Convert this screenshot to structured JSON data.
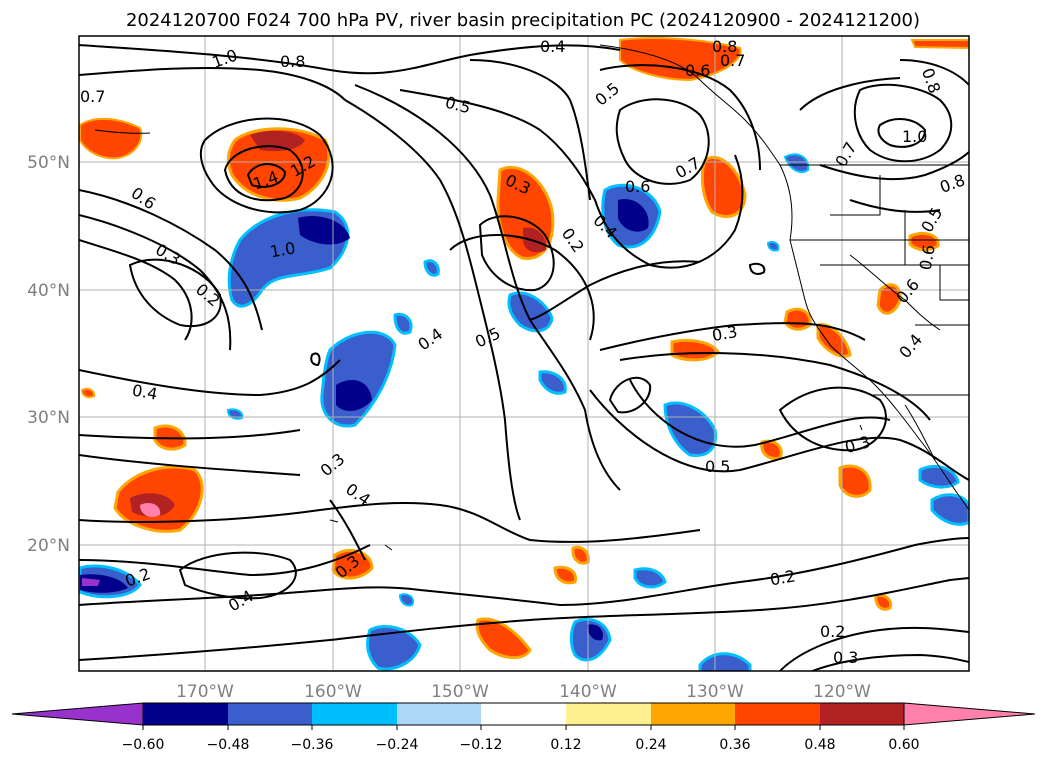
{
  "title": "2024120700 F024 700 hPa PV, river basin precipitation PC (2024120900 - 2024121200)",
  "map": {
    "lon_ticks": [
      "170°W",
      "160°W",
      "150°W",
      "140°W",
      "130°W",
      "120°W"
    ],
    "lat_ticks": [
      "50°N",
      "40°N",
      "30°N",
      "20°N"
    ],
    "grid": true,
    "contour_labels": [
      "1.0",
      "0.8",
      "0.7",
      "0.4",
      "0.8",
      "0.7",
      "0.6",
      "0.5",
      "0.5",
      "0.7",
      "0.6",
      "0.8",
      "1.0",
      "0.7",
      "0.8",
      "0.5",
      "1.4",
      "1.2",
      "0.6",
      "0.3",
      "0.6",
      "0.4",
      "0.2",
      "1.0",
      "0.3",
      "0.2",
      "0.6",
      "0.4",
      "0.5",
      "0.3",
      "0.4",
      "0.3",
      "0.5",
      "0.4",
      "0.3",
      "0.4",
      "0.3",
      "0.2",
      "0.4",
      "0.2",
      "0.2",
      "0.3"
    ]
  },
  "colorbar": {
    "tick_labels": [
      "−0.60",
      "−0.48",
      "−0.36",
      "−0.24",
      "−0.12",
      "0.12",
      "0.24",
      "0.36",
      "0.48",
      "0.60"
    ],
    "colors": [
      "#9932cc",
      "#00008b",
      "#3a5fcd",
      "#00bfff",
      "#add8f5",
      "#ffffff",
      "#fff08f",
      "#ffa500",
      "#ff4500",
      "#b22222",
      "#ff80aa"
    ]
  },
  "colors": {
    "neg_strong": "#00008b",
    "neg_med": "#3a5fcd",
    "neg_light": "#00bfff",
    "neg_pale": "#add8f5",
    "pos_pale": "#fff08f",
    "pos_light": "#ffa500",
    "pos_med": "#ff4500",
    "pos_strong": "#b22222",
    "pos_max": "#ff80aa",
    "neg_max": "#9932cc"
  }
}
